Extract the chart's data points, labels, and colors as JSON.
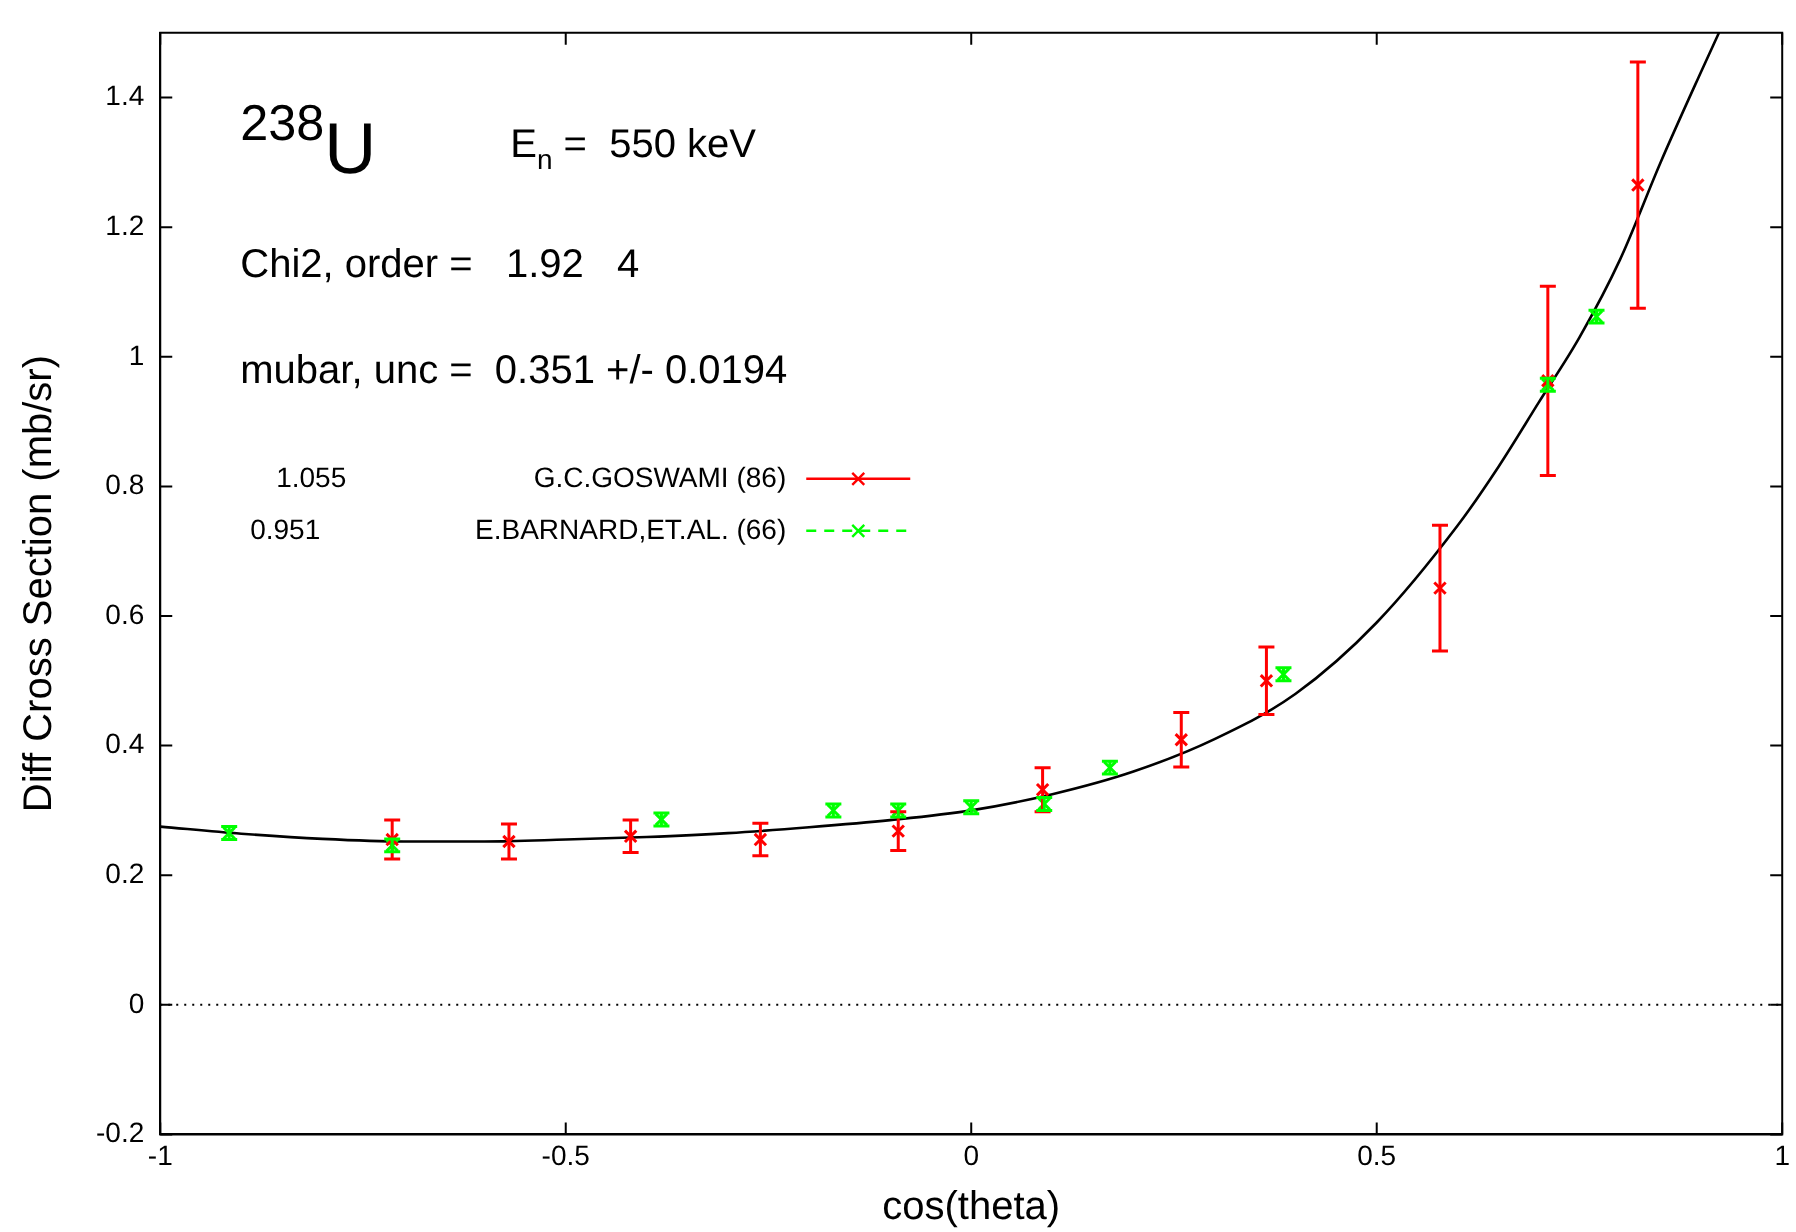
{
  "chart_data": {
    "type": "scatter",
    "xlabel": "cos(theta)",
    "ylabel": "Diff Cross Section (mb/sr)",
    "xlim": [
      -1,
      1
    ],
    "xticks": [
      -1,
      -0.5,
      0,
      0.5,
      1
    ],
    "ylim": [
      -0.2,
      1.5
    ],
    "yticks": [
      -0.2,
      0,
      0.2,
      0.4,
      0.6,
      0.8,
      1,
      1.2,
      1.4
    ],
    "grid": false,
    "legend": "top left",
    "marker": "cross",
    "annotations": [
      "$^{238}$U",
      "E$_{n}$ =  550 keV",
      "Chi2, order =   1.92   4",
      "mubar, unc =  0.351 +/- 0.0194",
      "1.055",
      "0.951"
    ],
    "ref_lines": [
      {
        "axis": "y",
        "value": 0,
        "color": "#000000",
        "line_style": "dotted"
      }
    ],
    "series": [
      {
        "name": "G.C.GOSWAMI (86)",
        "color": "#ff0000",
        "line_style": "solid",
        "x": [
          -0.714,
          -0.57,
          -0.42,
          -0.26,
          -0.09,
          0.088,
          0.259,
          0.364,
          0.578,
          0.711,
          0.822
        ],
        "values": [
          0.255,
          0.252,
          0.26,
          0.255,
          0.268,
          0.332,
          0.409,
          0.5,
          0.643,
          0.963,
          1.265
        ],
        "errors": [
          0.03,
          0.027,
          0.025,
          0.025,
          0.03,
          0.034,
          0.042,
          0.052,
          0.097,
          0.146,
          0.19
        ]
      },
      {
        "name": "E.BARNARD,ET.AL. (66)",
        "color": "#00ff00",
        "line_style": "dashed",
        "x": [
          -0.915,
          -0.714,
          -0.382,
          -0.17,
          -0.09,
          0,
          0.09,
          0.171,
          0.385,
          0.711,
          0.771
        ],
        "values": [
          0.265,
          0.246,
          0.286,
          0.3,
          0.3,
          0.305,
          0.31,
          0.366,
          0.51,
          0.957,
          1.062
        ],
        "errors": [
          0.01,
          0.01,
          0.01,
          0.01,
          0.01,
          0.01,
          0.01,
          0.01,
          0.01,
          0.01,
          0.01
        ]
      },
      {
        "color": "#000000",
        "type": "line",
        "marker": "none",
        "x": [
          -1,
          -0.9,
          -0.8,
          -0.7,
          -0.6,
          -0.5,
          -0.4,
          -0.3,
          -0.2,
          -0.1,
          0,
          0.1,
          0.2,
          0.3,
          0.4,
          0.5,
          0.6,
          0.65,
          0.7,
          0.75,
          0.8,
          0.85,
          0.9,
          0.922
        ],
        "values": [
          0.275,
          0.264,
          0.256,
          0.252,
          0.252,
          0.255,
          0.259,
          0.265,
          0.274,
          0.285,
          0.3,
          0.325,
          0.36,
          0.41,
          0.48,
          0.59,
          0.74,
          0.83,
          0.93,
          1.03,
          1.15,
          1.3,
          1.44,
          1.5
        ]
      }
    ]
  }
}
